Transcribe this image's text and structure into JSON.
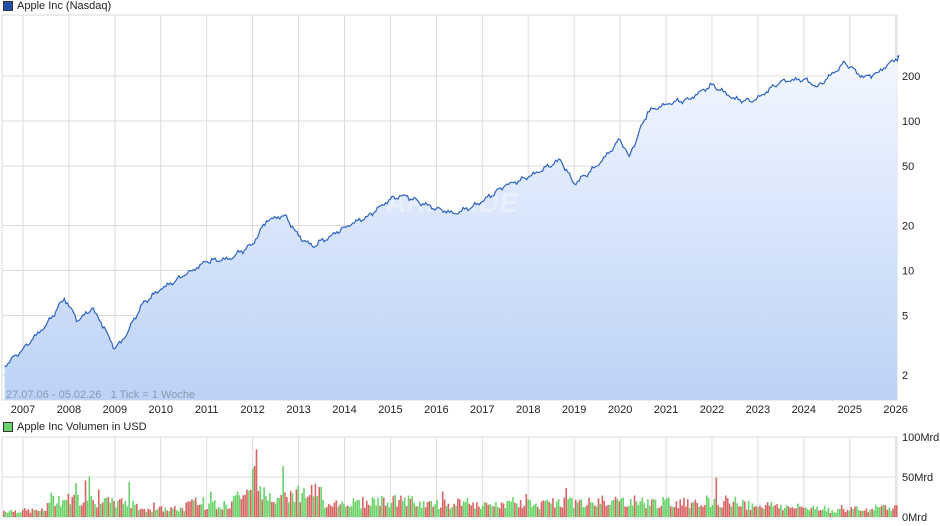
{
  "price_chart": {
    "legend": "Apple Inc (Nasdaq)",
    "legend_color": "#1f4fa8",
    "line_color": "#2e63c0",
    "info_text": "27.07.06 - 05.02.26   1 Tick = 1 Woche",
    "watermark": "ARIVA.DE"
  },
  "volume_chart": {
    "legend": "Apple Inc Volumen in USD",
    "legend_color": "#6ad46a",
    "up_color": "#6ad46a",
    "down_color": "#d86464"
  },
  "chart_data": [
    {
      "type": "area",
      "title": "Apple Inc (Nasdaq)",
      "xlabel": "",
      "ylabel": "",
      "yscale": "log",
      "date_range": "27.07.06 - 05.02.26",
      "tick": "1 Tick = 1 Woche",
      "x_ticks": [
        "2007",
        "2008",
        "2009",
        "2010",
        "2011",
        "2012",
        "2013",
        "2014",
        "2015",
        "2016",
        "2017",
        "2018",
        "2019",
        "2020",
        "2021",
        "2022",
        "2023",
        "2024",
        "2025",
        "2026"
      ],
      "y_ticks": [
        2,
        5,
        10,
        20,
        50,
        100,
        200
      ],
      "grid": true,
      "x": [
        2006.6,
        2007.0,
        2007.5,
        2007.9,
        2008.2,
        2008.5,
        2008.7,
        2009.0,
        2009.2,
        2009.6,
        2010.0,
        2010.5,
        2011.0,
        2011.5,
        2012.0,
        2012.3,
        2012.7,
        2013.0,
        2013.3,
        2013.7,
        2014.0,
        2014.5,
        2015.0,
        2015.3,
        2015.7,
        2016.0,
        2016.4,
        2016.8,
        2017.0,
        2017.5,
        2018.0,
        2018.7,
        2019.0,
        2019.5,
        2020.0,
        2020.2,
        2020.6,
        2021.0,
        2021.5,
        2022.0,
        2022.5,
        2022.9,
        2023.5,
        2024.0,
        2024.3,
        2024.9,
        2025.3,
        2025.6,
        2026.0,
        2026.1
      ],
      "values": [
        2.3,
        3.0,
        4.3,
        6.5,
        4.6,
        5.6,
        4.5,
        3.0,
        3.5,
        6.0,
        7.5,
        9.2,
        11.5,
        12.0,
        15.0,
        21.5,
        23.5,
        17.0,
        14.5,
        17.0,
        19.5,
        23.0,
        30.0,
        32.0,
        28.0,
        26.0,
        24.0,
        27.0,
        29.0,
        37.0,
        42.0,
        55.0,
        38.0,
        50.0,
        75.0,
        58.0,
        115.0,
        130.0,
        140.0,
        175.0,
        140.0,
        135.0,
        185.0,
        190.0,
        170.0,
        245.0,
        195.0,
        210.0,
        260.0,
        270.0
      ],
      "series_name": "Apple Inc (Nasdaq)"
    },
    {
      "type": "bar",
      "title": "Apple Inc Volumen in USD",
      "xlabel": "",
      "ylabel": "",
      "x_ticks": [
        "2007",
        "2008",
        "2009",
        "2010",
        "2011",
        "2012",
        "2013",
        "2014",
        "2015",
        "2016",
        "2017",
        "2018",
        "2019",
        "2020",
        "2021",
        "2022",
        "2023",
        "2024",
        "2025",
        "2026"
      ],
      "y_ticks": [
        "0Mrd",
        "50Mrd",
        "100Mrd"
      ],
      "ylim": [
        0,
        100
      ],
      "unit": "Mrd USD",
      "grid": true,
      "categories": [
        "2007",
        "2008",
        "2009",
        "2010",
        "2011",
        "2012",
        "2013",
        "2014",
        "2015",
        "2016",
        "2017",
        "2018",
        "2019",
        "2020",
        "2021",
        "2022",
        "2023",
        "2024",
        "2025",
        "2026"
      ],
      "values": [
        8,
        22,
        18,
        10,
        15,
        28,
        30,
        18,
        20,
        16,
        14,
        16,
        18,
        20,
        18,
        20,
        15,
        12,
        8,
        12
      ],
      "peak_values": [
        15,
        60,
        45,
        25,
        35,
        100,
        75,
        40,
        38,
        50,
        25,
        35,
        45,
        40,
        40,
        55,
        30,
        35,
        15,
        25
      ]
    }
  ]
}
